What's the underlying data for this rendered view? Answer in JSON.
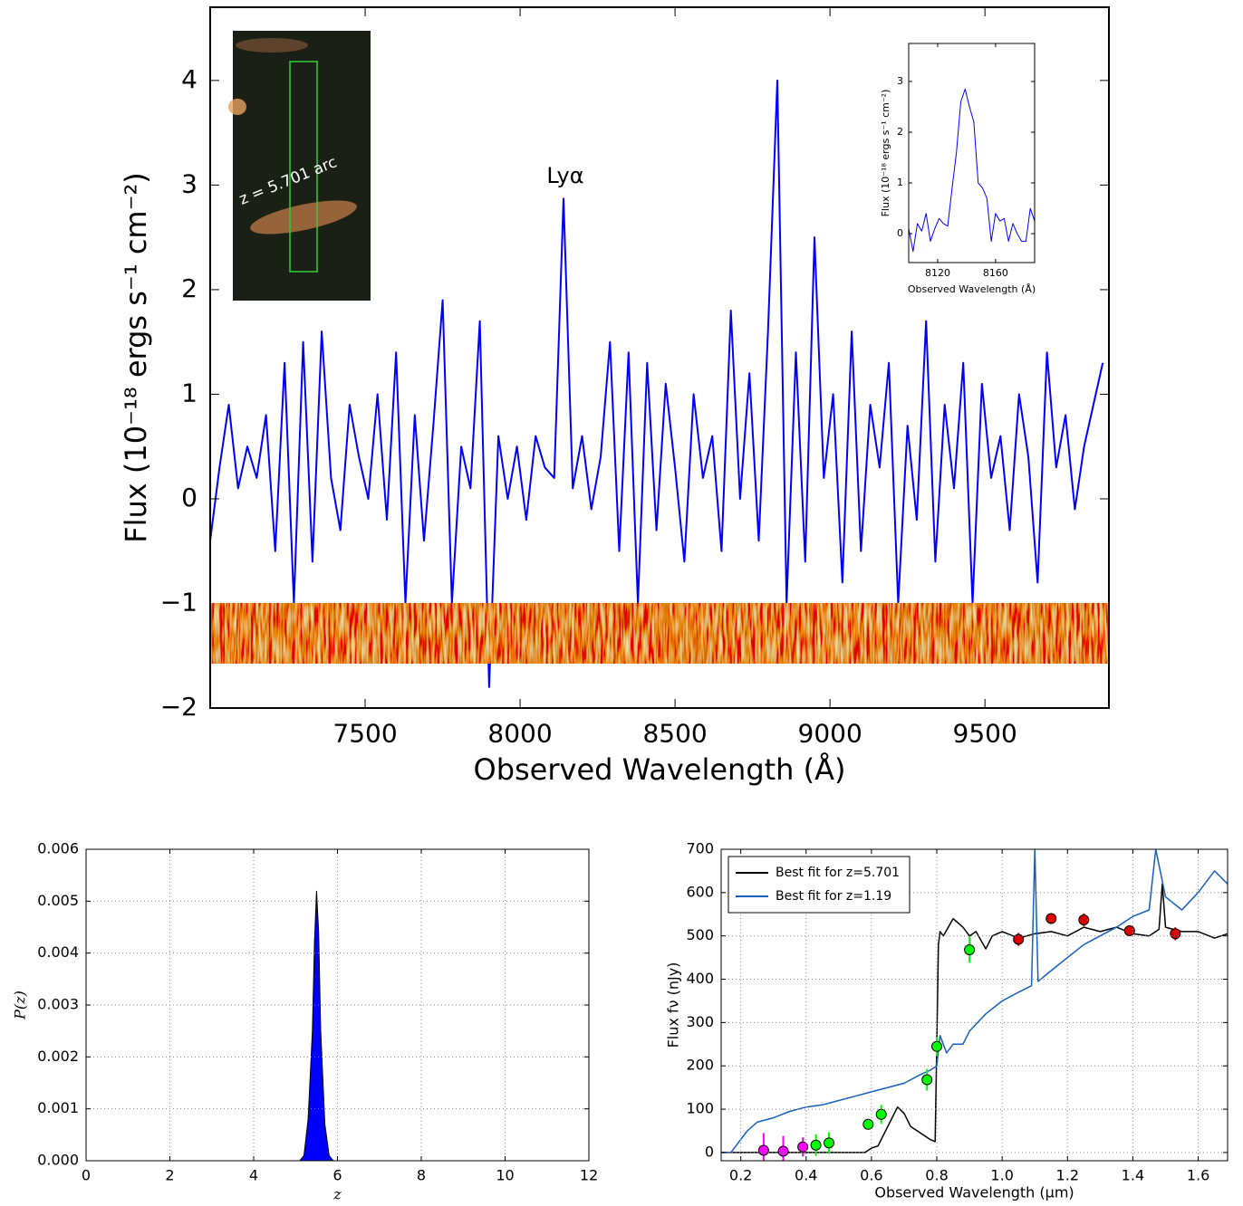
{
  "chart_data": [
    {
      "type": "line",
      "x_label": "Observed Wavelength (Å)",
      "y_label": "Flux (10⁻¹⁸  ergs s⁻¹  cm⁻²)",
      "annotation": "Lyα",
      "image_label": "z = 5.701 arc",
      "xlim": [
        7000,
        9900
      ],
      "ylim": [
        -2,
        4.7
      ],
      "xticks": [
        7500,
        8000,
        8500,
        9000,
        9500
      ],
      "yticks": [
        {
          "value": -2,
          "label": "−2"
        },
        {
          "value": -1,
          "label": "−1"
        },
        0,
        1,
        2,
        3,
        4
      ],
      "grid": false,
      "x": [
        7000,
        7030,
        7060,
        7090,
        7120,
        7150,
        7180,
        7210,
        7240,
        7270,
        7300,
        7330,
        7360,
        7390,
        7420,
        7450,
        7480,
        7510,
        7540,
        7570,
        7600,
        7630,
        7660,
        7690,
        7720,
        7750,
        7780,
        7810,
        7840,
        7870,
        7900,
        7930,
        7960,
        7990,
        8020,
        8050,
        8080,
        8110,
        8140,
        8170,
        8200,
        8230,
        8260,
        8290,
        8320,
        8350,
        8380,
        8410,
        8440,
        8470,
        8500,
        8530,
        8560,
        8590,
        8620,
        8650,
        8680,
        8710,
        8740,
        8770,
        8800,
        8830,
        8860,
        8890,
        8920,
        8950,
        8980,
        9010,
        9040,
        9070,
        9100,
        9130,
        9160,
        9190,
        9220,
        9250,
        9280,
        9310,
        9340,
        9370,
        9400,
        9430,
        9460,
        9490,
        9520,
        9550,
        9580,
        9610,
        9640,
        9670,
        9700,
        9730,
        9760,
        9790,
        9820,
        9850,
        9880
      ],
      "series": [
        {
          "color": "#0000ff",
          "values": [
            -0.4,
            0.3,
            0.9,
            0.1,
            0.5,
            0.2,
            0.8,
            -0.5,
            1.3,
            -1.0,
            1.5,
            -0.6,
            1.6,
            0.2,
            -0.3,
            0.9,
            0.4,
            0.0,
            1.0,
            -0.2,
            1.4,
            -1.0,
            0.8,
            -0.4,
            0.7,
            1.9,
            -1.0,
            0.5,
            0.1,
            1.7,
            -1.8,
            0.6,
            0.0,
            0.5,
            -0.2,
            0.6,
            0.3,
            0.2,
            2.87,
            0.1,
            0.6,
            -0.1,
            0.4,
            1.5,
            -0.5,
            1.4,
            -1.0,
            1.3,
            -0.3,
            1.1,
            0.3,
            -0.6,
            1.0,
            0.2,
            0.6,
            -0.5,
            1.8,
            0.0,
            1.2,
            -0.4,
            1.6,
            4.0,
            -1.0,
            1.4,
            -0.6,
            2.5,
            0.2,
            1.0,
            -0.8,
            1.6,
            -0.5,
            0.9,
            0.3,
            1.3,
            -1.0,
            0.7,
            -0.2,
            1.7,
            -0.6,
            0.9,
            0.1,
            1.3,
            -1.0,
            1.1,
            0.2,
            0.6,
            -0.3,
            1.0,
            0.4,
            -0.8,
            1.4,
            0.3,
            0.8,
            -0.1,
            0.5,
            0.9,
            1.3
          ]
        }
      ]
    },
    {
      "type": "line",
      "x_label": "Observed Wavelength (Å)",
      "y_label": "Flux (10⁻¹⁸ ergs s⁻¹ cm⁻²)",
      "xlim": [
        8100,
        8187
      ],
      "ylim": [
        -0.57,
        3.75
      ],
      "xticks": [
        8120,
        8160
      ],
      "yticks": [
        0,
        1,
        2,
        3
      ],
      "grid": false,
      "x": [
        8100,
        8103,
        8106,
        8109,
        8112,
        8115,
        8118,
        8121,
        8124,
        8127,
        8130,
        8133,
        8136,
        8139,
        8142,
        8145,
        8148,
        8151,
        8154,
        8157,
        8160,
        8163,
        8166,
        8169,
        8172,
        8175,
        8178,
        8181,
        8184,
        8187
      ],
      "series": [
        {
          "color": "#0000ff",
          "values": [
            0.1,
            -0.35,
            0.2,
            0.05,
            0.4,
            -0.15,
            0.1,
            0.3,
            0.2,
            0.15,
            0.9,
            1.6,
            2.6,
            2.85,
            2.5,
            2.2,
            1.0,
            0.9,
            0.7,
            -0.15,
            0.4,
            0.25,
            0.3,
            -0.15,
            0.2,
            0.0,
            -0.15,
            -0.15,
            0.5,
            0.25
          ]
        }
      ]
    },
    {
      "type": "area",
      "x_label": "z",
      "y_label": "P(z)",
      "xlim": [
        0,
        12
      ],
      "ylim": [
        0,
        0.006
      ],
      "xticks": [
        0,
        2,
        4,
        6,
        8,
        10,
        12
      ],
      "yticks": [
        {
          "value": 0,
          "label": "0.000"
        },
        {
          "value": 0.001,
          "label": "0.001"
        },
        {
          "value": 0.002,
          "label": "0.002"
        },
        {
          "value": 0.003,
          "label": "0.003"
        },
        {
          "value": 0.004,
          "label": "0.004"
        },
        {
          "value": 0.005,
          "label": "0.005"
        },
        {
          "value": 0.006,
          "label": "0.006"
        }
      ],
      "grid": true,
      "x": [
        5.1,
        5.2,
        5.3,
        5.4,
        5.45,
        5.5,
        5.55,
        5.6,
        5.7,
        5.8,
        5.9
      ],
      "series": [
        {
          "color": "#0000ff",
          "values": [
            0,
            0.0001,
            0.0008,
            0.0025,
            0.0042,
            0.0052,
            0.0044,
            0.0025,
            0.0007,
            0.0001,
            0
          ]
        }
      ]
    },
    {
      "type": "line",
      "x_label": "Observed Wavelength (μm)",
      "y_label": "Flux fν (nJy)",
      "xlim": [
        0.14,
        1.69
      ],
      "ylim": [
        -19,
        700
      ],
      "xticks": [
        0.2,
        0.4,
        0.6,
        0.8,
        {
          "value": 1,
          "label": "1.0"
        },
        1.2,
        1.4,
        1.6
      ],
      "yticks": [
        0,
        100,
        200,
        300,
        400,
        500,
        600,
        700
      ],
      "grid": true,
      "legend": "upper-left",
      "series": [
        {
          "name": "Best fit for z=5.701",
          "color": "#000000",
          "x": [
            0.14,
            0.58,
            0.6,
            0.62,
            0.65,
            0.68,
            0.7,
            0.72,
            0.75,
            0.78,
            0.795,
            0.8,
            0.805,
            0.81,
            0.82,
            0.85,
            0.88,
            0.9,
            0.92,
            0.95,
            0.97,
            1.0,
            1.05,
            1.1,
            1.15,
            1.2,
            1.25,
            1.3,
            1.35,
            1.4,
            1.45,
            1.48,
            1.49,
            1.5,
            1.55,
            1.6,
            1.65,
            1.69
          ],
          "values": [
            0,
            0,
            10,
            15,
            60,
            105,
            90,
            60,
            45,
            30,
            25,
            250,
            480,
            510,
            500,
            540,
            520,
            500,
            510,
            470,
            500,
            510,
            495,
            505,
            510,
            500,
            520,
            510,
            520,
            505,
            500,
            515,
            620,
            520,
            510,
            510,
            495,
            505
          ]
        },
        {
          "name": "Best fit for z=1.19",
          "color": "#1560bd",
          "x": [
            0.14,
            0.17,
            0.2,
            0.22,
            0.25,
            0.3,
            0.35,
            0.4,
            0.45,
            0.5,
            0.55,
            0.6,
            0.65,
            0.7,
            0.75,
            0.78,
            0.8,
            0.81,
            0.83,
            0.85,
            0.88,
            0.9,
            0.95,
            1.0,
            1.05,
            1.09,
            1.1,
            1.11,
            1.15,
            1.2,
            1.25,
            1.3,
            1.35,
            1.4,
            1.45,
            1.47,
            1.5,
            1.55,
            1.6,
            1.65,
            1.69
          ],
          "values": [
            0,
            0,
            30,
            50,
            70,
            80,
            95,
            105,
            110,
            120,
            130,
            140,
            150,
            160,
            180,
            190,
            200,
            270,
            230,
            250,
            250,
            280,
            320,
            350,
            370,
            385,
            700,
            395,
            420,
            450,
            480,
            500,
            520,
            545,
            560,
            700,
            590,
            560,
            600,
            650,
            620
          ]
        }
      ],
      "points": [
        {
          "color": "#ff00ff",
          "x": [
            0.27,
            0.33,
            0.39
          ],
          "values": [
            5,
            3,
            13
          ],
          "errors": [
            40,
            35,
            22
          ]
        },
        {
          "color": "#00ff00",
          "x": [
            0.43,
            0.47,
            0.59,
            0.63,
            0.77,
            0.8,
            0.9
          ],
          "values": [
            17,
            22,
            65,
            88,
            168,
            245,
            468
          ],
          "errors": [
            25,
            25,
            12,
            22,
            25,
            22,
            30
          ]
        },
        {
          "color": "#dd0000",
          "x": [
            1.05,
            1.15,
            1.25,
            1.39,
            1.53
          ],
          "values": [
            492,
            540,
            537,
            512,
            505
          ],
          "errors": [
            15,
            10,
            15,
            10,
            15
          ]
        }
      ]
    }
  ]
}
